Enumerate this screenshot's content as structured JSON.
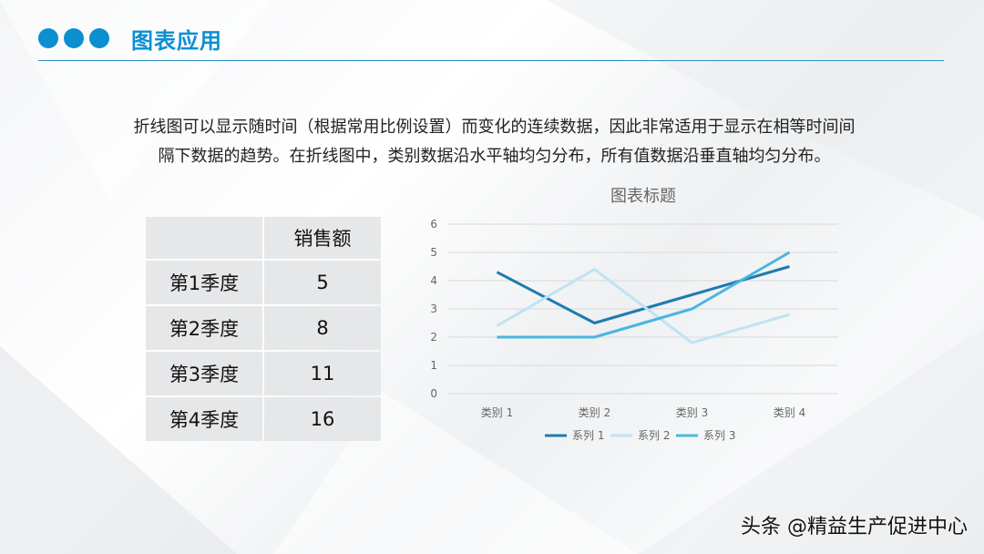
{
  "header": {
    "title": "图表应用"
  },
  "description": {
    "line1": "折线图可以显示随时间（根据常用比例设置）而变化的连续数据，因此非常适用于显示在相等时间间",
    "line2": "隔下数据的趋势。在折线图中，类别数据沿水平轴均匀分布，所有值数据沿垂直轴均匀分布。"
  },
  "table": {
    "header": [
      "",
      "销售额"
    ],
    "rows": [
      [
        "第1季度",
        "5"
      ],
      [
        "第2季度",
        "8"
      ],
      [
        "第3季度",
        "11"
      ],
      [
        "第4季度",
        "16"
      ]
    ]
  },
  "chart_data": {
    "type": "line",
    "title": "图表标题",
    "categories": [
      "类别 1",
      "类别 2",
      "类别 3",
      "类别 4"
    ],
    "ylim": [
      0,
      6
    ],
    "yticks": [
      "0",
      "1",
      "2",
      "3",
      "4",
      "5",
      "6"
    ],
    "grid": true,
    "legend": "bottom",
    "series": [
      {
        "name": "系列 1",
        "values": [
          4.3,
          2.5,
          3.5,
          4.5
        ],
        "color": "#1f7ab0"
      },
      {
        "name": "系列 2",
        "values": [
          2.4,
          4.4,
          1.8,
          2.8
        ],
        "color": "#bfe3f2"
      },
      {
        "name": "系列 3",
        "values": [
          2.0,
          2.0,
          3.0,
          5.0
        ],
        "color": "#4ab6e0"
      }
    ]
  },
  "watermark": "头条 @精益生产促进中心"
}
